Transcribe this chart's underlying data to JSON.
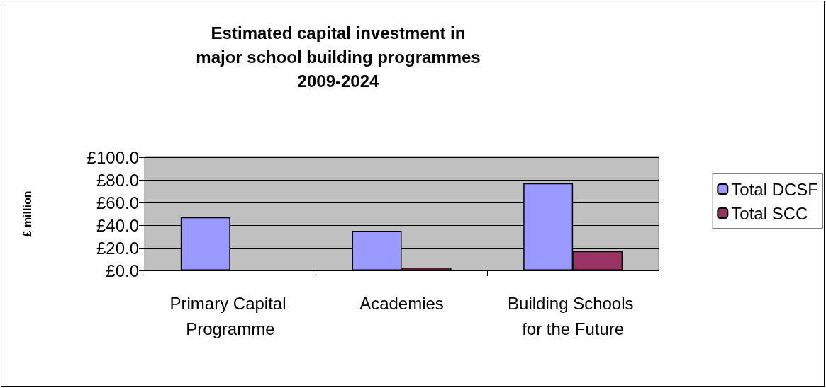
{
  "chart_data": {
    "type": "bar",
    "title": "Estimated capital investment in\nmajor school building programmes\n2009-2024",
    "ylabel": "£ million",
    "categories": [
      "Primary Capital Programme",
      "Academies",
      "Building Schools for the Future"
    ],
    "series": [
      {
        "name": "Total DCSF",
        "color": "#9999ff",
        "values": [
          47,
          35,
          77
        ]
      },
      {
        "name": "Total SCC",
        "color": "#993366",
        "values": [
          null,
          2.5,
          17
        ]
      }
    ],
    "ylim": [
      0,
      100
    ],
    "yticks": [
      {
        "value": 0,
        "label": "£0.0"
      },
      {
        "value": 20,
        "label": "£20.0"
      },
      {
        "value": 40,
        "label": "£40.0"
      },
      {
        "value": 60,
        "label": "£60.0"
      },
      {
        "value": 80,
        "label": "£80.0"
      },
      {
        "value": 100,
        "label": "£100.0"
      }
    ],
    "grid": "y",
    "legend": "right"
  }
}
